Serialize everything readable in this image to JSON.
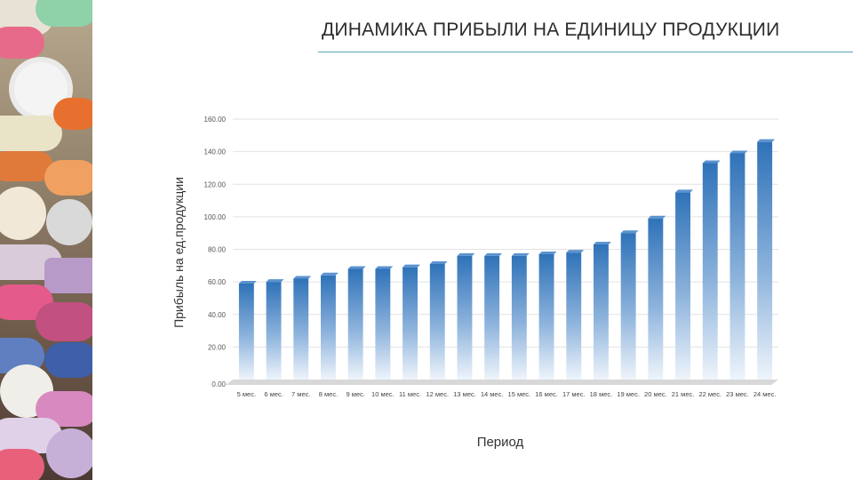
{
  "slide": {
    "title": "ДИНАМИКА ПРИБЫЛИ НА ЕДИНИЦУ ПРОДУКЦИИ"
  },
  "decor": {
    "sidebar_image": "colorful-pills-photo"
  },
  "colors": {
    "bar_top": "#2f72b8",
    "bar_bottom": "#eef4fb",
    "title_rule": "#5aa0b8",
    "grid": "#e2e2e2"
  },
  "chart_data": {
    "type": "bar",
    "ylabel": "Прибыль на ед.продукции",
    "xlabel": "Период",
    "ylim": [
      0,
      160
    ],
    "yticks": [
      "0.00",
      "20.00",
      "40.00",
      "60.00",
      "80.00",
      "100.00",
      "120.00",
      "140.00",
      "160.00"
    ],
    "grid": true,
    "categories": [
      "5 мес.",
      "6 мес.",
      "7 мес.",
      "8 мес.",
      "9 мес.",
      "10 мес.",
      "11 мес.",
      "12 мес.",
      "13 мес.",
      "14 мес.",
      "15 мес.",
      "16 мес.",
      "17 мес.",
      "18 мес.",
      "19 мес.",
      "20 мес.",
      "21 мес.",
      "22 мес.",
      "23 мес.",
      "24 мес."
    ],
    "values": [
      59,
      60,
      62,
      64,
      68,
      68,
      69,
      71,
      76,
      76,
      76,
      77,
      78,
      83,
      90,
      99,
      115,
      133,
      139,
      146
    ]
  }
}
